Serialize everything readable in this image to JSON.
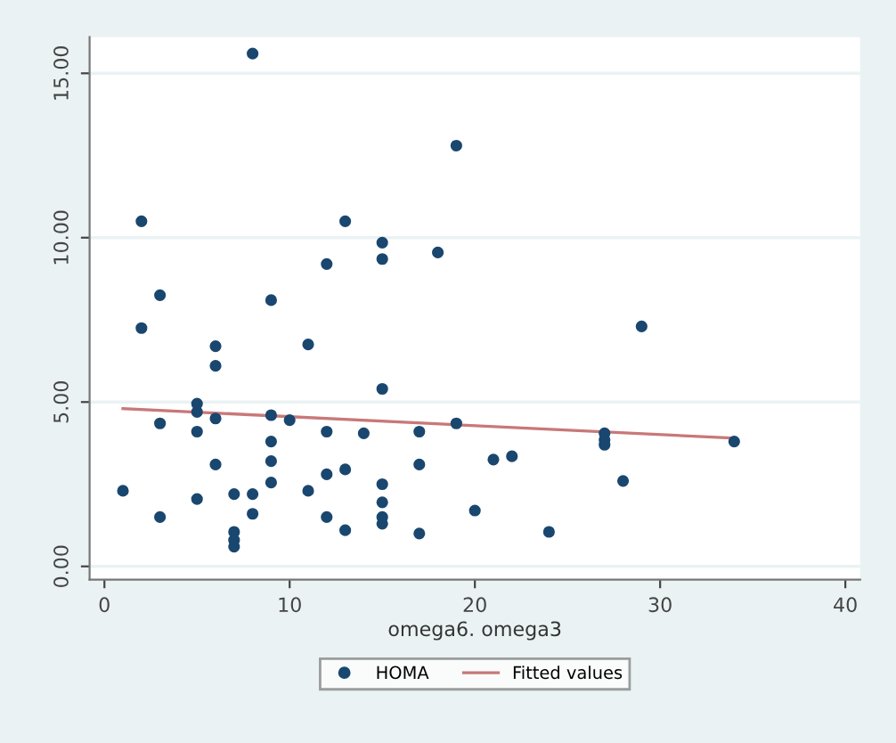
{
  "chart_data": {
    "type": "scatter",
    "xlabel": "omega6. omega3",
    "xlim": [
      -0.8,
      40.8
    ],
    "ylim": [
      -0.4,
      16.1
    ],
    "xticks": [
      0,
      10,
      20,
      30,
      40
    ],
    "yticks": [
      {
        "value": 0,
        "label": "0.00"
      },
      {
        "value": 5,
        "label": "5.00"
      },
      {
        "value": 10,
        "label": "10.00"
      },
      {
        "value": 15,
        "label": "15.00"
      }
    ],
    "grid": "y",
    "legend": "bottom",
    "series": [
      {
        "name": "HOMA",
        "color": "#1a476f",
        "marker": "circle",
        "x": [
          1,
          2,
          2,
          3,
          3,
          3,
          5,
          5,
          5,
          5,
          6,
          6,
          6,
          6,
          7,
          7,
          7,
          7,
          8,
          8,
          8,
          9,
          9,
          9,
          9,
          9,
          10,
          11,
          11,
          12,
          12,
          12,
          12,
          13,
          13,
          13,
          14,
          15,
          15,
          15,
          15,
          15,
          15,
          15,
          17,
          17,
          17,
          18,
          19,
          19,
          20,
          21,
          22,
          24,
          27,
          27,
          27,
          28,
          29,
          34
        ],
        "values": [
          2.3,
          10.5,
          7.25,
          8.25,
          4.35,
          1.5,
          4.95,
          4.7,
          4.1,
          2.05,
          4.5,
          3.1,
          6.1,
          6.7,
          2.2,
          1.05,
          0.8,
          0.6,
          15.6,
          2.2,
          1.6,
          8.1,
          4.6,
          3.8,
          3.2,
          2.55,
          4.45,
          6.75,
          2.3,
          9.2,
          4.1,
          2.8,
          1.5,
          10.5,
          2.95,
          1.1,
          4.05,
          9.85,
          9.35,
          5.4,
          2.5,
          1.95,
          1.5,
          1.3,
          4.1,
          3.1,
          1.0,
          9.55,
          12.8,
          4.35,
          1.7,
          3.25,
          3.35,
          1.05,
          4.05,
          3.85,
          3.7,
          2.6,
          7.3,
          3.8
        ]
      },
      {
        "name": "Fitted values",
        "type": "line",
        "color": "#c87878",
        "marker": "none",
        "x": [
          1,
          34
        ],
        "values": [
          4.8,
          3.9
        ]
      }
    ]
  }
}
